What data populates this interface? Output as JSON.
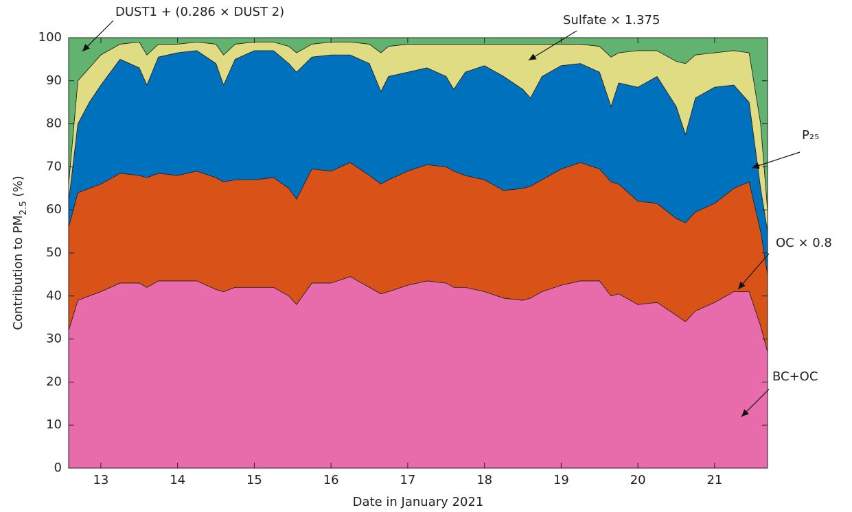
{
  "chart_data": {
    "type": "stacked_area",
    "xlabel": "Date in January 2021",
    "ylabel": [
      "Contribution to PM",
      "2.5",
      " (%)"
    ],
    "x": [
      12.58,
      12.7,
      12.85,
      13.0,
      13.25,
      13.5,
      13.6,
      13.75,
      14.0,
      14.25,
      14.5,
      14.6,
      14.75,
      15.0,
      15.25,
      15.45,
      15.55,
      15.75,
      16.0,
      16.25,
      16.5,
      16.65,
      16.75,
      17.0,
      17.25,
      17.5,
      17.6,
      17.75,
      18.0,
      18.25,
      18.5,
      18.6,
      18.75,
      19.0,
      19.25,
      19.5,
      19.65,
      19.75,
      20.0,
      20.25,
      20.5,
      20.62,
      20.75,
      21.0,
      21.25,
      21.45,
      21.6,
      21.69
    ],
    "xlim": [
      12.58,
      21.69
    ],
    "xticks": [
      13,
      14,
      15,
      16,
      17,
      18,
      19,
      20,
      21
    ],
    "ylim": [
      0,
      100
    ],
    "yticks": [
      0,
      10,
      20,
      30,
      40,
      50,
      60,
      70,
      80,
      90,
      100
    ],
    "series": [
      {
        "name": "BC+OC",
        "color": "#e86bab",
        "values": [
          32,
          39,
          40,
          41,
          43,
          43,
          42,
          43.5,
          43.5,
          43.5,
          41.5,
          41,
          42,
          42,
          42,
          40,
          38,
          43,
          43,
          44.5,
          42,
          40.5,
          41,
          42.5,
          43.5,
          43,
          42,
          42,
          41,
          39.5,
          39,
          39.5,
          41,
          42.5,
          43.5,
          43.5,
          40,
          40.5,
          38,
          38.5,
          35.5,
          34,
          36.5,
          38.5,
          41,
          41,
          33,
          27
        ]
      },
      {
        "name": "OC × 0.8",
        "color": "#d95319",
        "values": [
          24,
          25,
          25,
          25,
          25.5,
          25,
          25.5,
          25,
          24.5,
          25.5,
          26,
          25.5,
          25,
          25,
          25.5,
          25,
          24.5,
          26.5,
          26,
          26.5,
          26,
          25.5,
          26,
          26.5,
          27,
          27,
          27,
          26,
          26,
          25,
          26,
          26,
          26,
          27,
          27.5,
          26,
          26.5,
          25.5,
          24,
          23,
          22.5,
          23,
          23,
          23,
          24,
          25.5,
          22,
          18
        ]
      },
      {
        "name": "P₂₅",
        "color": "#0072bd",
        "values": [
          6,
          16,
          20,
          23,
          26.5,
          25,
          21.5,
          27,
          28.5,
          28,
          26.5,
          22.5,
          28,
          30,
          29.5,
          29,
          29.5,
          26,
          27,
          25,
          26,
          21.5,
          24,
          23,
          22.5,
          21,
          19,
          24,
          26.5,
          26.5,
          23,
          20.5,
          24,
          24,
          23,
          22.5,
          17.5,
          23.5,
          26.5,
          29.5,
          26,
          20.5,
          26.5,
          27,
          24,
          18.5,
          10,
          10
        ]
      },
      {
        "name": "Sulfate × 1.375",
        "color": "#e0dc84",
        "values": [
          4,
          10,
          8,
          7,
          3.5,
          6,
          7,
          3,
          2,
          2,
          4.5,
          7,
          3.5,
          2,
          2,
          4,
          4.5,
          3,
          3,
          3,
          4.5,
          9,
          7,
          6.5,
          5.5,
          7.5,
          10.5,
          6.5,
          5,
          7.5,
          10.5,
          12.5,
          7.5,
          5,
          4.5,
          6,
          11.5,
          7,
          8.5,
          6,
          10.5,
          16.5,
          10,
          8,
          8,
          11.5,
          15,
          5
        ]
      },
      {
        "name": "DUST1 + (0.286 × DUST 2)",
        "color": "#62b36f",
        "values": [
          34,
          10,
          7,
          4,
          1.5,
          1,
          4,
          1.5,
          1.5,
          1,
          1.5,
          4,
          1.5,
          1,
          1,
          2,
          3.5,
          1.5,
          1,
          1,
          1.5,
          3.5,
          2,
          1.5,
          1.5,
          1.5,
          1.5,
          1.5,
          1.5,
          1.5,
          1.5,
          1.5,
          1.5,
          1.5,
          1.5,
          2,
          4.5,
          3.5,
          3,
          3,
          5.5,
          6,
          4,
          3.5,
          3,
          3.5,
          20,
          40
        ]
      }
    ]
  }
}
